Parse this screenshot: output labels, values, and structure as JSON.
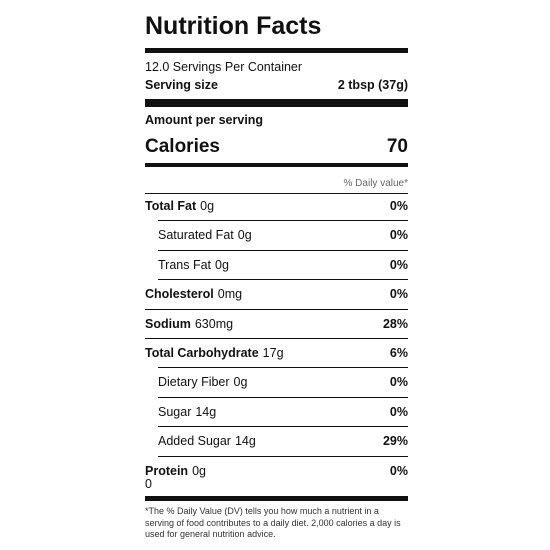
{
  "title": "Nutrition Facts",
  "servings": "12.0 Servings Per Container",
  "serving_size": {
    "label": "Serving size",
    "value": "2 tbsp (37g)"
  },
  "amount_per_serving": "Amount per serving",
  "calories": {
    "label": "Calories",
    "value": "70"
  },
  "dv_header": "% Daily value*",
  "nutrients": [
    {
      "name": "Total Fat",
      "amount": "0g",
      "dv": "0%",
      "indent": false
    },
    {
      "name": "Saturated Fat",
      "amount": "0g",
      "dv": "0%",
      "indent": true
    },
    {
      "name": "Trans Fat",
      "amount": "0g",
      "dv": "0%",
      "indent": true
    },
    {
      "name": "Cholesterol",
      "amount": "0mg",
      "dv": "0%",
      "indent": false
    },
    {
      "name": "Sodium",
      "amount": "630mg",
      "dv": "28%",
      "indent": false
    },
    {
      "name": "Total Carbohydrate",
      "amount": "17g",
      "dv": "6%",
      "indent": false
    },
    {
      "name": "Dietary Fiber",
      "amount": "0g",
      "dv": "0%",
      "indent": true
    },
    {
      "name": "Sugar",
      "amount": "14g",
      "dv": "0%",
      "indent": true
    },
    {
      "name": "Added Sugar",
      "amount": "14g",
      "dv": "29%",
      "indent": true
    },
    {
      "name": "Protein",
      "amount": "0g",
      "dv": "0%",
      "indent": false,
      "note": "0"
    }
  ],
  "footnote": "*The % Daily Value (DV) tells you how much a nutrient in a serving of food contributes to a daily diet. 2,000 calories a day is used for general nutrition advice."
}
